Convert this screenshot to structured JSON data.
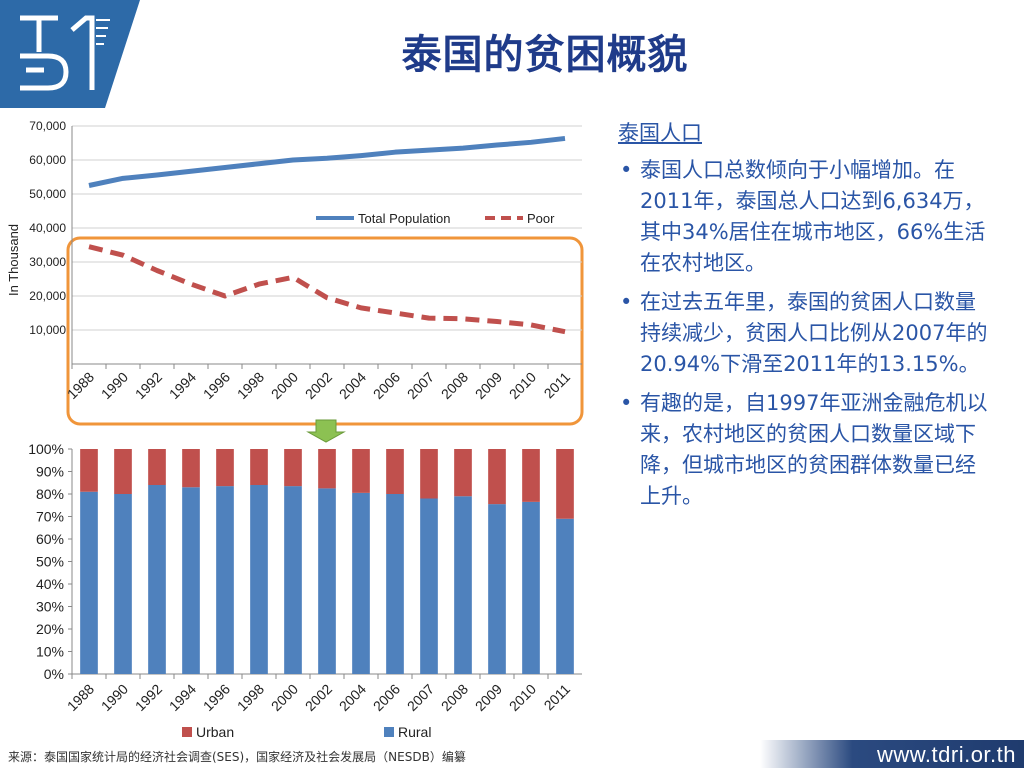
{
  "title": "泰国的贫困概貌",
  "side": {
    "heading": "泰国人口",
    "bullets": [
      "泰国人口总数倾向于小幅增加。在2011年，泰国总人口达到6,634万，其中34%居住在城市地区，66%生活在农村地区。",
      "在过去五年里，泰国的贫困人口数量持续减少，贫困人口比例从2007年的20.94%下滑至2011年的13.15%。",
      "有趣的是，自1997年亚洲金融危机以来，农村地区的贫困人口数量区域下降，但城市地区的贫困群体数量已经上升。"
    ]
  },
  "footer": {
    "source": "来源：泰国国家统计局的经济社会调查(SES)，国家经济及社会发展局（NESDB）编纂",
    "url": "www.tdri.or.th"
  },
  "colors": {
    "title": "#1f3b8a",
    "text": "#2a55a6",
    "total_line": "#4f81bd",
    "poor_line": "#c0504d",
    "rural": "#4f81bd",
    "urban": "#c0504d",
    "highlight_box": "#f0953a",
    "arrow": "#7ab648"
  },
  "icons": {
    "logo": "tdri-logo",
    "arrow": "down-arrow-icon"
  },
  "chart_data": [
    {
      "type": "line",
      "categories": [
        "1988",
        "1990",
        "1992",
        "1994",
        "1996",
        "1998",
        "2000",
        "2002",
        "2004",
        "2006",
        "2007",
        "2008",
        "2009",
        "2010",
        "2011"
      ],
      "ylabel": "In Thousand",
      "ylim": [
        0,
        70000
      ],
      "y_ticks": [
        "",
        "10,000",
        "20,000",
        "30,000",
        "40,000",
        "50,000",
        "60,000",
        "70,000"
      ],
      "legend_position": "right",
      "series": [
        {
          "name": "Total Population",
          "style": "solid",
          "values": [
            52500,
            54600,
            55600,
            56700,
            57800,
            58900,
            60000,
            60500,
            61300,
            62300,
            62900,
            63500,
            64400,
            65200,
            66340
          ]
        },
        {
          "name": "Poor",
          "style": "dashed",
          "values": [
            34500,
            32000,
            27500,
            23500,
            20000,
            23500,
            25500,
            19500,
            16500,
            15000,
            13500,
            13300,
            12500,
            11500,
            9500
          ]
        }
      ]
    },
    {
      "type": "bar",
      "stacked": true,
      "categories": [
        "1988",
        "1990",
        "1992",
        "1994",
        "1996",
        "1998",
        "2000",
        "2002",
        "2004",
        "2006",
        "2007",
        "2008",
        "2009",
        "2010",
        "2011"
      ],
      "ylim": [
        0,
        100
      ],
      "y_ticks": [
        "0%",
        "10%",
        "20%",
        "30%",
        "40%",
        "50%",
        "60%",
        "70%",
        "80%",
        "90%",
        "100%"
      ],
      "legend_position": "bottom",
      "series": [
        {
          "name": "Rural",
          "values": [
            81,
            80,
            84,
            83,
            83.5,
            84,
            83.5,
            82.5,
            80.5,
            80,
            78,
            79,
            75.5,
            76.5,
            69
          ]
        },
        {
          "name": "Urban",
          "values": [
            19,
            20,
            16,
            17,
            16.5,
            16,
            16.5,
            17.5,
            19.5,
            20,
            22,
            21,
            24.5,
            23.5,
            31
          ]
        }
      ]
    }
  ]
}
